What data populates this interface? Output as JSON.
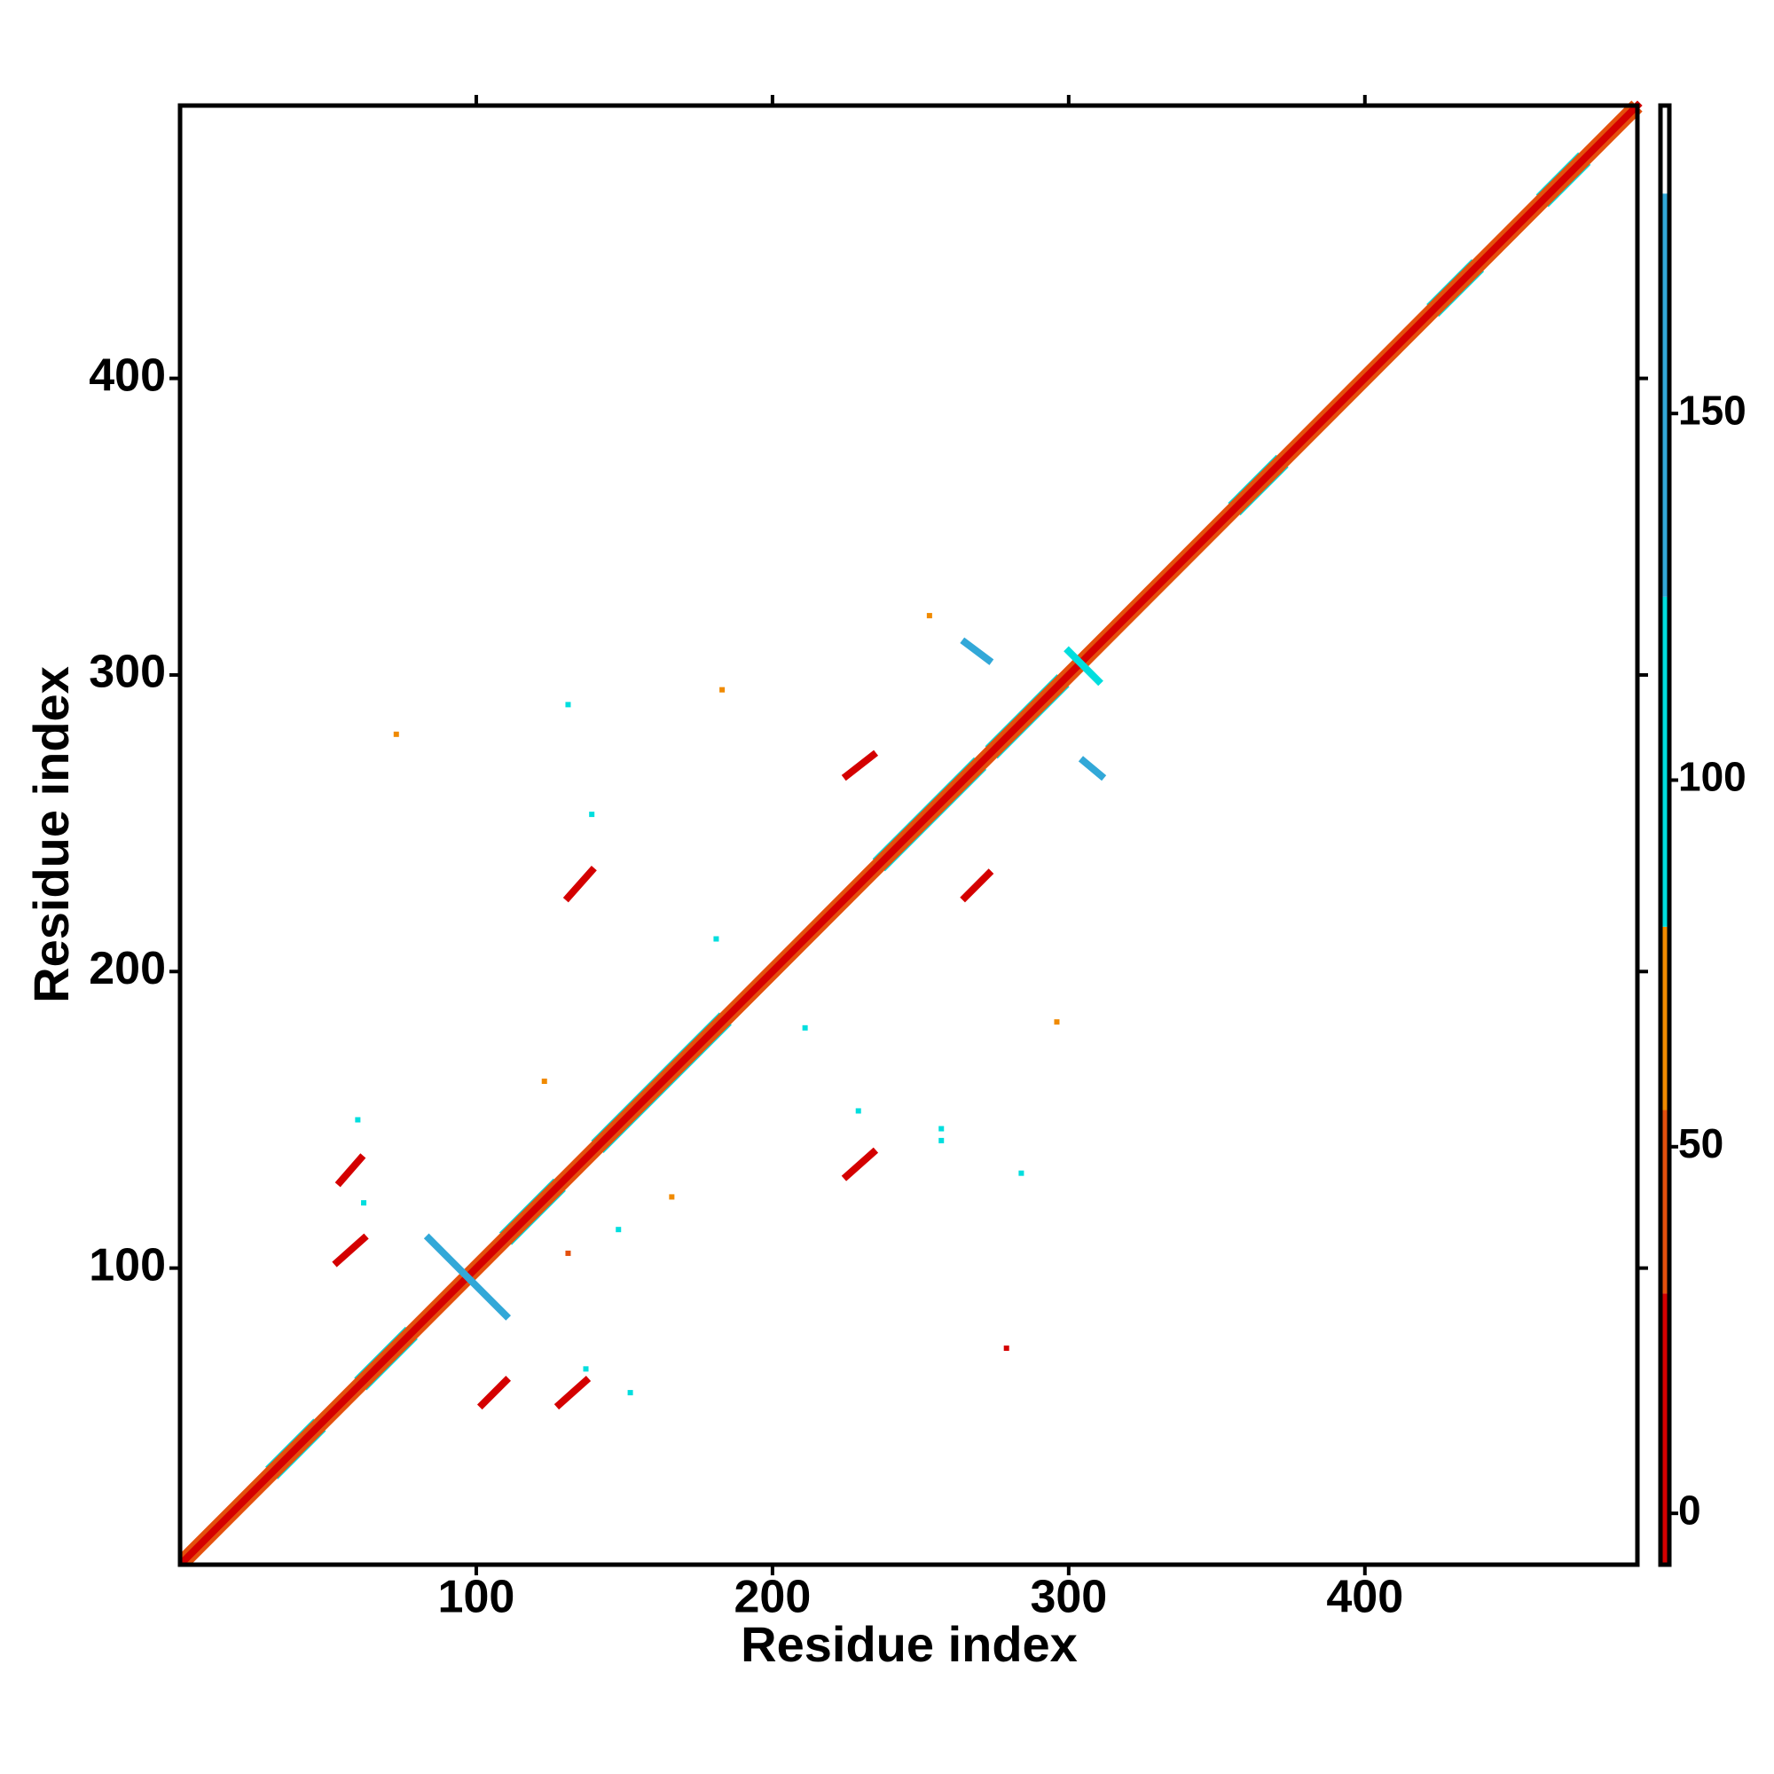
{
  "chart_data": {
    "type": "heatmap",
    "xlabel": "Residue index",
    "ylabel": "Residue index",
    "xlim": [
      0,
      492
    ],
    "ylim": [
      0,
      492
    ],
    "xticks": [
      100,
      200,
      300,
      400
    ],
    "yticks": [
      100,
      200,
      300,
      400
    ],
    "clim": [
      -7,
      192
    ],
    "cticks": [
      0,
      50,
      100,
      150
    ],
    "color_stops": [
      {
        "value": -7,
        "color": "#d40000"
      },
      {
        "value": 30,
        "color": "#e4500c"
      },
      {
        "value": 55,
        "color": "#f08a00"
      },
      {
        "value": 80,
        "color": "#00dede"
      },
      {
        "value": 125,
        "color": "#32a8d8"
      },
      {
        "value": 180,
        "color": "#ffffff"
      }
    ],
    "helices": [
      {
        "x": [
          33,
          45
        ],
        "y": [
          33,
          45
        ],
        "value": 90
      },
      {
        "x": [
          63,
          76
        ],
        "y": [
          63,
          76
        ],
        "value": 90
      },
      {
        "x": [
          112,
          126
        ],
        "y": [
          112,
          126
        ],
        "value": 90
      },
      {
        "x": [
          143,
          182
        ],
        "y": [
          143,
          182
        ],
        "value": 90
      },
      {
        "x": [
          238,
          268
        ],
        "y": [
          238,
          268
        ],
        "value": 90
      },
      {
        "x": [
          276,
          296
        ],
        "y": [
          276,
          296
        ],
        "value": 90
      },
      {
        "x": [
          358,
          370
        ],
        "y": [
          358,
          370
        ],
        "value": 90
      },
      {
        "x": [
          425,
          436
        ],
        "y": [
          425,
          436
        ],
        "value": 90
      },
      {
        "x": [
          462,
          472
        ],
        "y": [
          462,
          472
        ],
        "value": 90
      }
    ],
    "segments": [
      {
        "x": [
          1,
          490
        ],
        "y": [
          3,
          492
        ],
        "value": 50
      },
      {
        "x": [
          3,
          492
        ],
        "y": [
          1,
          490
        ],
        "value": 50
      },
      {
        "x": [
          1,
          492
        ],
        "y": [
          1,
          492
        ],
        "value": 0
      },
      {
        "x": [
          54,
          61
        ],
        "y": [
          129,
          137
        ],
        "value": 10
      },
      {
        "x": [
          53,
          62
        ],
        "y": [
          102,
          110
        ],
        "value": 10
      },
      {
        "x": [
          102,
          110
        ],
        "y": [
          54,
          62
        ],
        "value": 10
      },
      {
        "x": [
          128,
          137
        ],
        "y": [
          54,
          62
        ],
        "value": 10
      },
      {
        "x": [
          131,
          139
        ],
        "y": [
          225,
          234
        ],
        "value": 10
      },
      {
        "x": [
          225,
          234
        ],
        "y": [
          131,
          139
        ],
        "value": 10
      },
      {
        "x": [
          225,
          234
        ],
        "y": [
          266,
          273
        ],
        "value": 10
      },
      {
        "x": [
          265,
          273
        ],
        "y": [
          225,
          233
        ],
        "value": 10
      },
      {
        "x": [
          84,
          110
        ],
        "y": [
          110,
          84
        ],
        "value": 150
      },
      {
        "x": [
          265,
          273
        ],
        "y": [
          311,
          305
        ],
        "value": 150
      },
      {
        "x": [
          305,
          311
        ],
        "y": [
          271,
          266
        ],
        "value": 150
      },
      {
        "x": [
          300,
          310
        ],
        "y": [
          308,
          298
        ],
        "value": 100
      }
    ],
    "points": {
      "x": [
        131,
        139,
        181,
        211,
        152,
        284,
        60,
        148,
        257,
        229,
        73,
        183,
        296,
        279,
        123,
        166,
        131,
        253,
        257,
        62,
        137
      ],
      "y": [
        290,
        253,
        211,
        181,
        58,
        132,
        150,
        113,
        143,
        153,
        280,
        295,
        183,
        73,
        163,
        124,
        105,
        320,
        147,
        122,
        66
      ],
      "values": [
        100,
        100,
        100,
        100,
        120,
        120,
        100,
        100,
        100,
        100,
        55,
        55,
        55,
        5,
        55,
        55,
        40,
        70,
        100,
        120,
        120
      ]
    }
  }
}
